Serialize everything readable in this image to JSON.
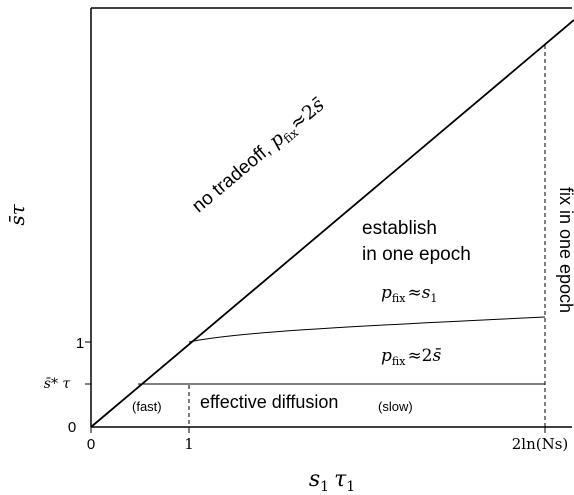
{
  "axes": {
    "xlabel": {
      "var": "s",
      "sub": "1",
      "var2": "τ",
      "sub2": "1"
    },
    "ylabel": {
      "bar": "s̄",
      "tau": "τ"
    },
    "x_ticks": [
      {
        "text": "0"
      },
      {
        "text": "1"
      },
      {
        "text": "2ln(Ns)"
      }
    ],
    "y_ticks": [
      {
        "text": "0"
      },
      {
        "text": "1"
      },
      {
        "text": "s̄* τ"
      }
    ]
  },
  "regions": {
    "diagonal_label": {
      "prefix": "no tradeoff, ",
      "p": "p",
      "p_sub": "fix",
      "approx": "≈2",
      "s_bar": "s̄"
    },
    "establish_line1": "establish",
    "establish_line2": "in one epoch",
    "p_fix_s1": {
      "p": "p",
      "p_sub": "fix",
      "approx": "≈",
      "s": "s",
      "s_sub": "1"
    },
    "p_fix_2s": {
      "p": "p",
      "p_sub": "fix",
      "approx": "≈2",
      "s_bar": "s̄"
    },
    "fix_one_epoch": "fix in one epoch",
    "effective_diffusion": "effective diffusion",
    "fast": "(fast)",
    "slow": "(slow)"
  }
}
